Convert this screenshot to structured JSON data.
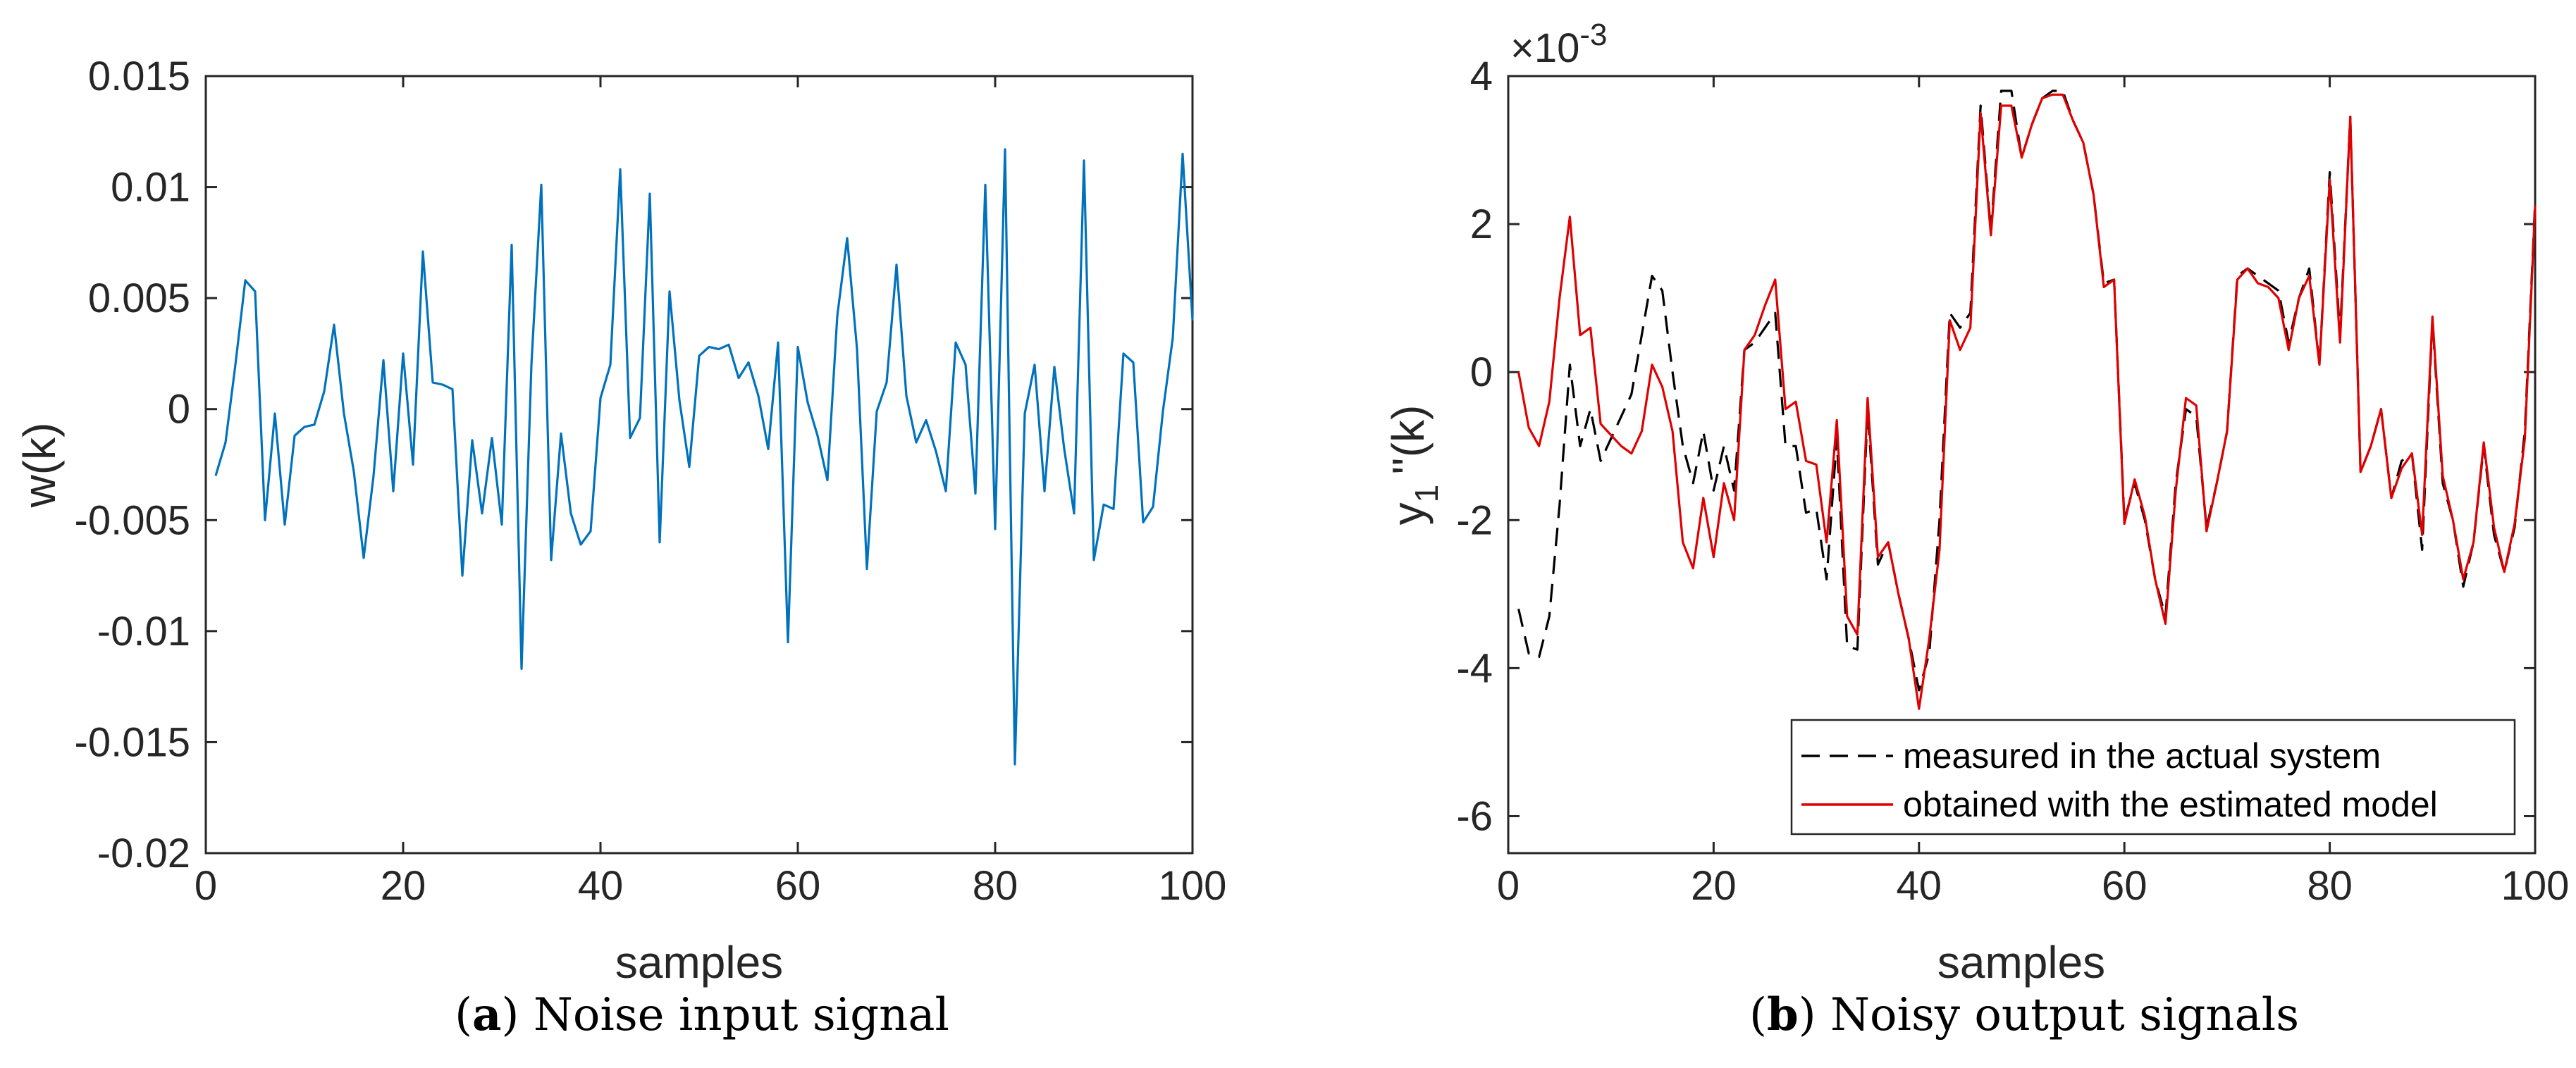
{
  "figure": {
    "caption_a_letter": "a",
    "caption_a_text": "Noise input signal",
    "caption_b_letter": "b",
    "caption_b_text": "Noisy output signals"
  },
  "colors": {
    "noise_line": "#0072BD",
    "measured_line": "#000000",
    "model_line": "#E00000",
    "axis": "#262626"
  },
  "chart_data": [
    {
      "type": "line",
      "title": "",
      "xlabel": "samples",
      "ylabel": "w(k)",
      "xlim": [
        0,
        100
      ],
      "ylim": [
        -0.02,
        0.015
      ],
      "xticks": [
        0,
        20,
        40,
        60,
        80,
        100
      ],
      "xtick_labels": [
        "0",
        "20",
        "40",
        "60",
        "80",
        "100"
      ],
      "yticks": [
        0.015,
        0.01,
        0.005,
        0,
        -0.005,
        -0.01,
        -0.015,
        -0.02
      ],
      "ytick_labels": [
        "0.015",
        "0.01",
        "0.005",
        "0",
        "-0.005",
        "-0.01",
        "-0.015",
        "-0.02"
      ],
      "series": [
        {
          "name": "w(k)",
          "x_start": 1,
          "values": [
            -0.003,
            -0.0015,
            0.002,
            0.0058,
            0.0053,
            -0.005,
            -0.0002,
            -0.0052,
            -0.0012,
            -0.0008,
            -0.0007,
            0.0008,
            0.0038,
            -0.0002,
            -0.0028,
            -0.0067,
            -0.003,
            0.0022,
            -0.0037,
            0.0025,
            -0.0025,
            0.0071,
            0.0012,
            0.0011,
            0.0009,
            -0.0075,
            -0.0014,
            -0.0047,
            -0.0013,
            -0.0052,
            0.0074,
            -0.0117,
            0.002,
            0.0101,
            -0.0068,
            -0.0011,
            -0.0047,
            -0.0061,
            -0.0055,
            0.0005,
            0.002,
            0.0108,
            -0.0013,
            -0.0004,
            0.0097,
            -0.006,
            0.0053,
            0.0004,
            -0.0026,
            0.0024,
            0.0028,
            0.0027,
            0.0029,
            0.0014,
            0.0021,
            0.0006,
            -0.0018,
            0.003,
            -0.0105,
            0.0028,
            0.0003,
            -0.0012,
            -0.0032,
            0.0042,
            0.0077,
            0.0027,
            -0.0072,
            -0.0001,
            0.0012,
            0.0065,
            0.0006,
            -0.0015,
            -0.0005,
            -0.0019,
            -0.0037,
            0.003,
            0.002,
            -0.0038,
            0.0101,
            -0.0054,
            0.0117,
            -0.016,
            -0.0002,
            0.002,
            -0.0037,
            0.0019,
            -0.0018,
            -0.0047,
            0.0112,
            -0.0068,
            -0.0043,
            -0.0045,
            0.0025,
            0.0021,
            -0.0051,
            -0.0044,
            -0.0001,
            0.0032,
            0.0115,
            0.004
          ]
        }
      ]
    },
    {
      "type": "line",
      "title": "",
      "xlabel": "samples",
      "ylabel_main": "y",
      "ylabel_sub": "1",
      "ylabel_rest": "''(k)",
      "exponent_label": "×10",
      "exponent_power": "-3",
      "xlim": [
        0,
        100
      ],
      "ylim": [
        -6.5,
        4
      ],
      "xticks": [
        0,
        20,
        40,
        60,
        80,
        100
      ],
      "xtick_labels": [
        "0",
        "20",
        "40",
        "60",
        "80",
        "100"
      ],
      "yticks": [
        4,
        2,
        0,
        -2,
        -4,
        -6
      ],
      "ytick_labels": [
        "4",
        "2",
        "0",
        "-2",
        "-4",
        "-6"
      ],
      "legend_position": "bottom-right",
      "series": [
        {
          "name": "measured in the actual system",
          "style": "dashed",
          "x_start": 1,
          "values": [
            -3.2,
            -3.8,
            -3.85,
            -3.3,
            -1.8,
            0.1,
            -1.0,
            -0.5,
            -1.2,
            -0.9,
            -0.6,
            -0.3,
            0.5,
            1.3,
            1.1,
            0.0,
            -1.0,
            -1.5,
            -0.8,
            -1.6,
            -1.0,
            -1.6,
            0.3,
            0.4,
            0.6,
            0.8,
            -1.0,
            -1.0,
            -1.9,
            -1.85,
            -2.8,
            -0.9,
            -3.7,
            -3.75,
            -0.5,
            -2.6,
            -2.3,
            -3.0,
            -3.6,
            -4.3,
            -3.8,
            -2.0,
            0.8,
            0.6,
            0.8,
            3.6,
            1.9,
            3.8,
            3.8,
            2.9,
            3.35,
            3.7,
            3.8,
            3.8,
            3.4,
            3.1,
            2.4,
            1.2,
            1.25,
            -2.0,
            -1.5,
            -2.0,
            -2.8,
            -3.3,
            -1.5,
            -0.5,
            -0.6,
            -2.1,
            -1.5,
            -0.8,
            1.3,
            1.4,
            1.3,
            1.2,
            1.1,
            0.4,
            1.0,
            1.4,
            0.1,
            2.7,
            0.5,
            3.45,
            -1.35,
            -1.0,
            -0.5,
            -1.7,
            -1.2,
            -1.1,
            -2.4,
            0.7,
            -1.5,
            -2.0,
            -2.9,
            -2.3,
            -1.0,
            -2.2,
            -2.7,
            -2.1,
            -0.8,
            2.3
          ]
        },
        {
          "name": "obtained with the estimated model",
          "style": "solid",
          "x_start": 1,
          "values": [
            0.0,
            -0.75,
            -1.0,
            -0.4,
            1.0,
            2.1,
            0.5,
            0.6,
            -0.7,
            -0.85,
            -1.0,
            -1.1,
            -0.8,
            0.1,
            -0.2,
            -0.8,
            -2.3,
            -2.65,
            -1.7,
            -2.5,
            -1.5,
            -2.0,
            0.3,
            0.5,
            0.9,
            1.25,
            -0.5,
            -0.4,
            -1.2,
            -1.25,
            -2.3,
            -0.65,
            -3.3,
            -3.55,
            -0.35,
            -2.5,
            -2.3,
            -3.0,
            -3.6,
            -4.55,
            -3.6,
            -2.4,
            0.7,
            0.3,
            0.6,
            3.5,
            1.85,
            3.6,
            3.6,
            2.9,
            3.35,
            3.7,
            3.75,
            3.75,
            3.4,
            3.1,
            2.4,
            1.15,
            1.25,
            -2.05,
            -1.45,
            -1.95,
            -2.8,
            -3.4,
            -1.6,
            -0.35,
            -0.45,
            -2.15,
            -1.5,
            -0.8,
            1.25,
            1.4,
            1.2,
            1.15,
            1.0,
            0.3,
            1.0,
            1.3,
            0.1,
            2.6,
            0.4,
            3.45,
            -1.35,
            -1.0,
            -0.5,
            -1.7,
            -1.3,
            -1.1,
            -2.2,
            0.75,
            -1.4,
            -2.0,
            -2.8,
            -2.3,
            -0.95,
            -2.1,
            -2.7,
            -2.05,
            -0.9,
            2.25
          ]
        }
      ]
    }
  ]
}
